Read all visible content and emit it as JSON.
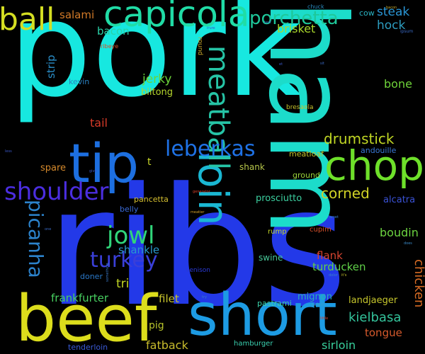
{
  "background": "#000000",
  "words": [
    {
      "text": "pork",
      "color": "#17e8e0"
    },
    {
      "text": "ribs",
      "color": "#2339e8"
    },
    {
      "text": "ham",
      "color": "#1cdcca"
    },
    {
      "text": "short",
      "color": "#1d9be3"
    },
    {
      "text": "beef",
      "color": "#dcdd1c"
    },
    {
      "text": "tip",
      "color": "#1d6fe0"
    },
    {
      "text": "chop",
      "color": "#6ee02a"
    },
    {
      "text": "loin",
      "color": "#1ab7d2"
    },
    {
      "text": "capicola",
      "color": "#20dca6"
    },
    {
      "text": "ball",
      "color": "#d4de22"
    },
    {
      "text": "porchetta",
      "color": "#1ec89a"
    },
    {
      "text": "meatball",
      "color": "#26c4a6"
    },
    {
      "text": "leberkas",
      "color": "#1f72e6"
    },
    {
      "text": "shoulder",
      "color": "#4b2ee0"
    },
    {
      "text": "picanha",
      "color": "#2c83cc"
    },
    {
      "text": "jowl",
      "color": "#30d57a"
    },
    {
      "text": "turkey",
      "color": "#3a3fd8"
    },
    {
      "text": "drumstick",
      "color": "#c0d624"
    },
    {
      "text": "corned",
      "color": "#d0d226"
    },
    {
      "text": "chicken",
      "color": "#d66b24"
    },
    {
      "text": "steak",
      "color": "#2a97d6"
    },
    {
      "text": "hock",
      "color": "#2d9dc0"
    },
    {
      "text": "brisket",
      "color": "#a8d62c"
    },
    {
      "text": "salami",
      "color": "#d27a28"
    },
    {
      "text": "bacon",
      "color": "#2ad2a8"
    },
    {
      "text": "jerky",
      "color": "#6bd43a"
    },
    {
      "text": "biltong",
      "color": "#b4d42c"
    },
    {
      "text": "strip",
      "color": "#2a8ec8"
    },
    {
      "text": "kevin",
      "color": "#2a80c0"
    },
    {
      "text": "bone",
      "color": "#6fd43a"
    },
    {
      "text": "tail",
      "color": "#d63a28"
    },
    {
      "text": "frankfurter",
      "color": "#48d060"
    },
    {
      "text": "filet",
      "color": "#c8c42c"
    },
    {
      "text": "tri",
      "color": "#c0d424"
    },
    {
      "text": "shankle",
      "color": "#2a98cc"
    },
    {
      "text": "boudin",
      "color": "#6cd440"
    },
    {
      "text": "turducken",
      "color": "#60d048"
    },
    {
      "text": "flank",
      "color": "#d64430"
    },
    {
      "text": "kielbasa",
      "color": "#34c49c"
    },
    {
      "text": "tongue",
      "color": "#d65a2c"
    },
    {
      "text": "fatback",
      "color": "#c8bc2c"
    },
    {
      "text": "sirloin",
      "color": "#38d09c"
    },
    {
      "text": "spare",
      "color": "#d68a2c"
    },
    {
      "text": "pig",
      "color": "#b8c42c"
    },
    {
      "text": "prosciutto",
      "color": "#3cd0a0"
    },
    {
      "text": "pancetta",
      "color": "#d6c030"
    },
    {
      "text": "belly",
      "color": "#3a6ad6"
    },
    {
      "text": "swine",
      "color": "#48c898"
    },
    {
      "text": "mignon",
      "color": "#2ab0b8"
    },
    {
      "text": "pastrami",
      "color": "#3ad0a8"
    },
    {
      "text": "landjaeger",
      "color": "#c6c62c"
    },
    {
      "text": "shank",
      "color": "#b6c64a"
    },
    {
      "text": "ground",
      "color": "#9cd43a"
    },
    {
      "text": "alcatra",
      "color": "#3a52d6"
    },
    {
      "text": "andouille",
      "color": "#3a78d6"
    },
    {
      "text": "meatloaf",
      "color": "#c2c22a"
    },
    {
      "text": "bresaola",
      "color": "#c8c42c"
    },
    {
      "text": "rump",
      "color": "#c2d62a"
    },
    {
      "text": "cupim",
      "color": "#d6502a"
    },
    {
      "text": "doner",
      "color": "#2a78c8"
    },
    {
      "text": "venison",
      "color": "#2a3ad6"
    },
    {
      "text": "hamburger",
      "color": "#3ad0b0"
    },
    {
      "text": "tenderloin",
      "color": "#3a5ad6"
    },
    {
      "text": "sausage",
      "color": "#d66a2a"
    },
    {
      "text": "cow",
      "color": "#2ab4c4"
    },
    {
      "text": "chuck",
      "color": "#2a8ac0"
    },
    {
      "text": "ribeye",
      "color": "#d6502a"
    },
    {
      "text": "round",
      "color": "#c8a82c"
    },
    {
      "text": "t",
      "color": "#c8d62a"
    },
    {
      "text": "ipsum",
      "color": "#3a6ac6"
    },
    {
      "text": "sirloin",
      "color": "#3aa0c8"
    },
    {
      "text": "irure",
      "color": "#3a58c8"
    },
    {
      "text": "text",
      "color": "#3a7ac8"
    },
    {
      "text": "give",
      "color": "#3a58c8"
    },
    {
      "text": "generator",
      "color": "#d6402a"
    },
    {
      "text": "meatier",
      "color": "#d6a22a"
    },
    {
      "text": "does",
      "color": "#3a8ac8"
    },
    {
      "text": "dolor",
      "color": "#3a80c8"
    },
    {
      "text": "it's",
      "color": "#c6c42c"
    },
    {
      "text": "little",
      "color": "#d6402a"
    },
    {
      "text": "try",
      "color": "#3a7ac8"
    },
    {
      "text": "something",
      "color": "#3a7ac8"
    },
    {
      "text": "bacon",
      "color": "#c6a82c"
    },
    {
      "text": "sit",
      "color": "#3a6ac6"
    },
    {
      "text": "amet",
      "color": "#3a80c8"
    },
    {
      "text": "one",
      "color": "#3a6ac6"
    },
    {
      "text": "less",
      "color": "#3a58c8"
    },
    {
      "text": "et",
      "color": "#3a58c8"
    }
  ]
}
